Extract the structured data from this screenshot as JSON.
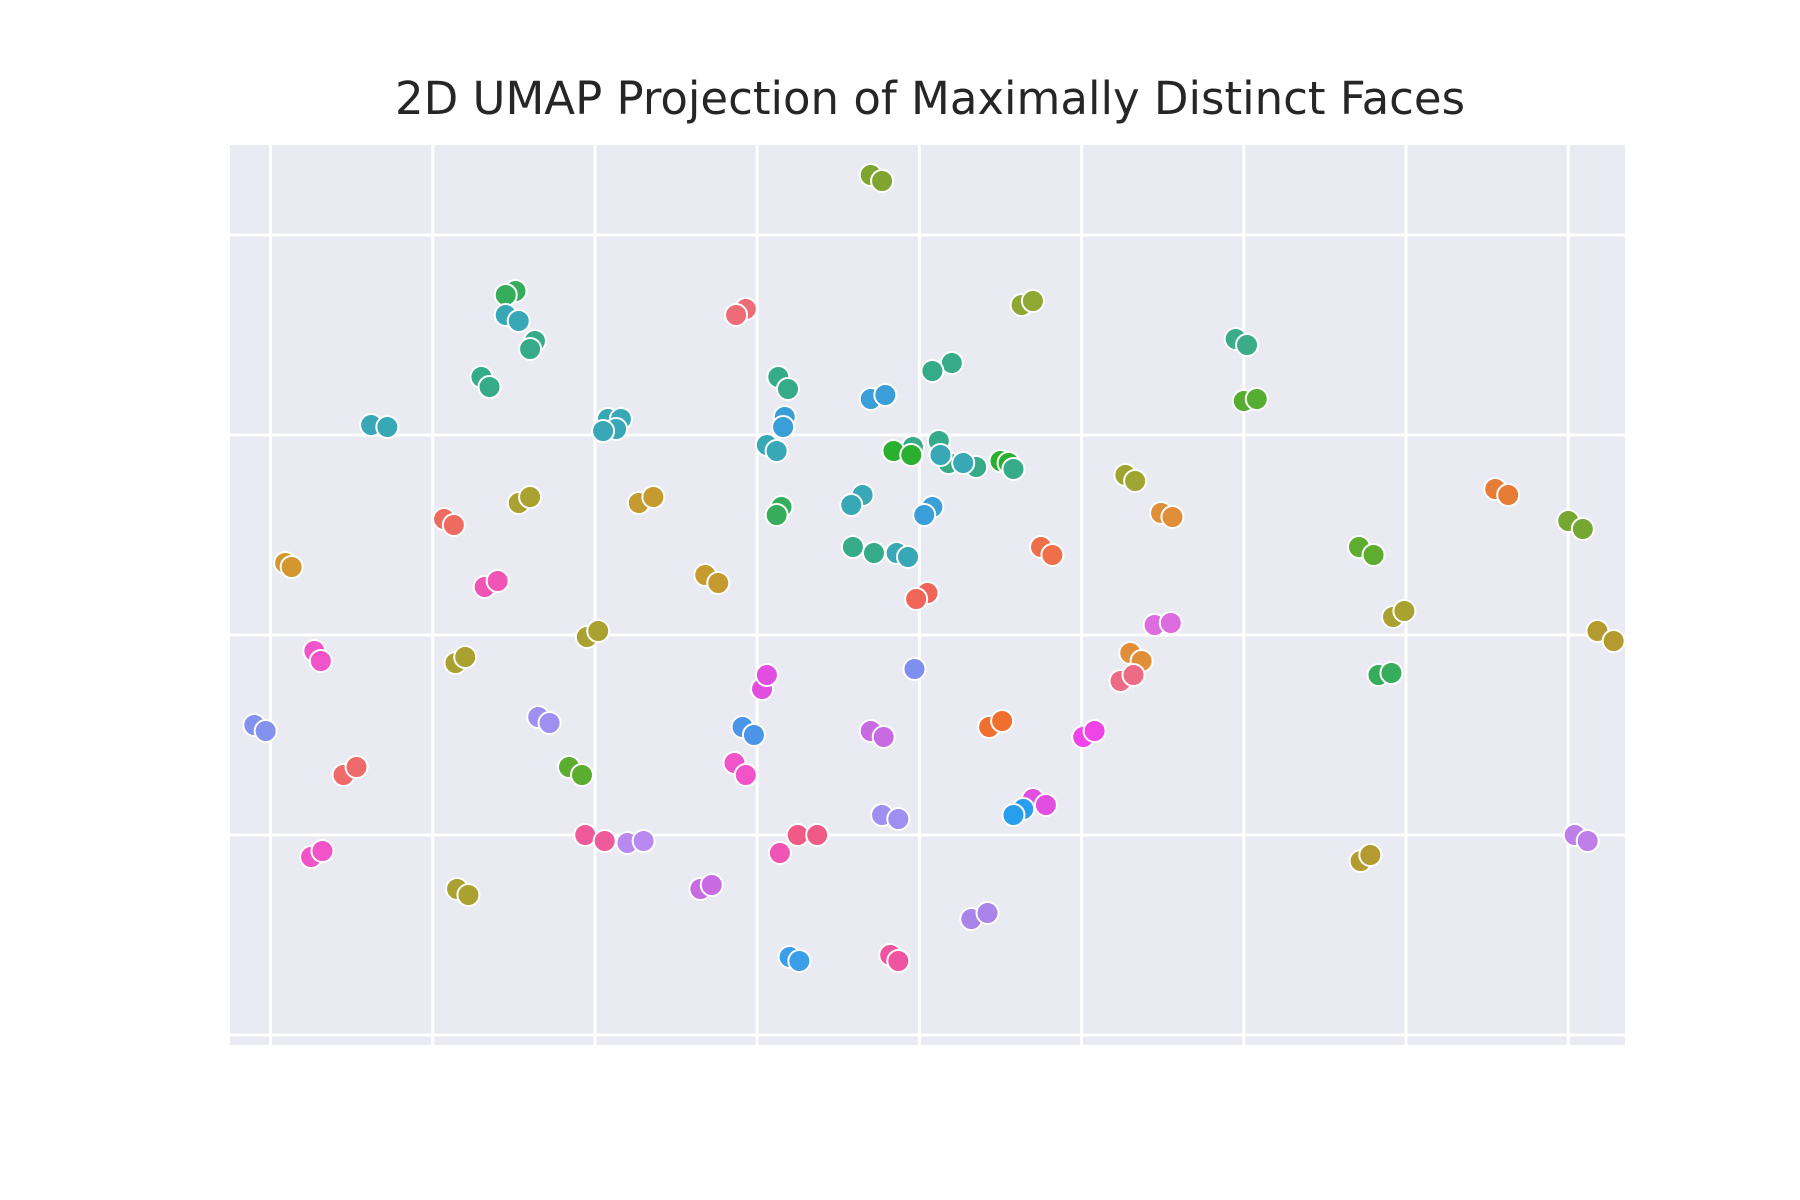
{
  "chart_data": {
    "type": "scatter",
    "title": "2D UMAP Projection of Maximally Distinct Faces",
    "xlabel": "",
    "ylabel": "",
    "xlim": [
      -0.25,
      8.35
    ],
    "ylim": [
      -0.05,
      4.45
    ],
    "grid": true,
    "points": [
      {
        "x": 3.7,
        "y": 4.3,
        "color": "#7fa530"
      },
      {
        "x": 3.77,
        "y": 4.27,
        "color": "#7fa530"
      },
      {
        "x": 1.51,
        "y": 3.72,
        "color": "#36ad5a"
      },
      {
        "x": 1.45,
        "y": 3.7,
        "color": "#36ad5a"
      },
      {
        "x": 1.45,
        "y": 3.6,
        "color": "#38a8b6"
      },
      {
        "x": 1.53,
        "y": 3.57,
        "color": "#38a8b6"
      },
      {
        "x": 1.63,
        "y": 3.47,
        "color": "#36ab8a"
      },
      {
        "x": 1.6,
        "y": 3.43,
        "color": "#36ab8a"
      },
      {
        "x": 1.3,
        "y": 3.29,
        "color": "#36ab8a"
      },
      {
        "x": 1.35,
        "y": 3.24,
        "color": "#36ab8a"
      },
      {
        "x": 0.62,
        "y": 3.05,
        "color": "#38a8b6"
      },
      {
        "x": 0.72,
        "y": 3.04,
        "color": "#38a8b6"
      },
      {
        "x": 2.93,
        "y": 3.63,
        "color": "#ee6b78"
      },
      {
        "x": 2.87,
        "y": 3.6,
        "color": "#ee6b78"
      },
      {
        "x": 4.63,
        "y": 3.65,
        "color": "#8fa834"
      },
      {
        "x": 4.7,
        "y": 3.67,
        "color": "#8fa834"
      },
      {
        "x": 5.95,
        "y": 3.48,
        "color": "#3aac8a"
      },
      {
        "x": 6.02,
        "y": 3.45,
        "color": "#3aac8a"
      },
      {
        "x": 6.0,
        "y": 3.17,
        "color": "#55ae32"
      },
      {
        "x": 6.08,
        "y": 3.18,
        "color": "#55ae32"
      },
      {
        "x": 4.2,
        "y": 3.36,
        "color": "#36ab8a"
      },
      {
        "x": 4.08,
        "y": 3.32,
        "color": "#36ab8a"
      },
      {
        "x": 3.13,
        "y": 3.29,
        "color": "#36ab8a"
      },
      {
        "x": 3.19,
        "y": 3.23,
        "color": "#36ab8a"
      },
      {
        "x": 3.7,
        "y": 3.18,
        "color": "#3a9fd8"
      },
      {
        "x": 3.79,
        "y": 3.2,
        "color": "#3a9fd8"
      },
      {
        "x": 3.17,
        "y": 3.09,
        "color": "#3a9fd8"
      },
      {
        "x": 3.16,
        "y": 3.04,
        "color": "#3a9fd8"
      },
      {
        "x": 2.08,
        "y": 3.08,
        "color": "#38a8b6"
      },
      {
        "x": 2.16,
        "y": 3.08,
        "color": "#38a8b6"
      },
      {
        "x": 2.13,
        "y": 3.03,
        "color": "#38a8b6"
      },
      {
        "x": 2.05,
        "y": 3.02,
        "color": "#38a8b6"
      },
      {
        "x": 3.06,
        "y": 2.95,
        "color": "#38a8b6"
      },
      {
        "x": 3.12,
        "y": 2.92,
        "color": "#38a8b6"
      },
      {
        "x": 3.96,
        "y": 2.94,
        "color": "#36ab8a"
      },
      {
        "x": 4.12,
        "y": 2.97,
        "color": "#36ab8a"
      },
      {
        "x": 4.18,
        "y": 2.86,
        "color": "#36ab8a"
      },
      {
        "x": 4.35,
        "y": 2.84,
        "color": "#36ab8a"
      },
      {
        "x": 4.13,
        "y": 2.9,
        "color": "#38a8b6"
      },
      {
        "x": 4.27,
        "y": 2.86,
        "color": "#38a8b6"
      },
      {
        "x": 3.84,
        "y": 2.92,
        "color": "#2aaf2e"
      },
      {
        "x": 3.95,
        "y": 2.9,
        "color": "#2aaf2e"
      },
      {
        "x": 4.5,
        "y": 2.87,
        "color": "#2aaf2e"
      },
      {
        "x": 4.55,
        "y": 2.86,
        "color": "#2aaf2e"
      },
      {
        "x": 4.58,
        "y": 2.83,
        "color": "#36ab8a"
      },
      {
        "x": 5.27,
        "y": 2.8,
        "color": "#9fa531"
      },
      {
        "x": 5.33,
        "y": 2.77,
        "color": "#9fa531"
      },
      {
        "x": 7.55,
        "y": 2.73,
        "color": "#e77c37"
      },
      {
        "x": 7.63,
        "y": 2.7,
        "color": "#e77c37"
      },
      {
        "x": 1.53,
        "y": 2.66,
        "color": "#a9a230"
      },
      {
        "x": 1.6,
        "y": 2.69,
        "color": "#a9a230"
      },
      {
        "x": 2.27,
        "y": 2.66,
        "color": "#c59a2e"
      },
      {
        "x": 2.36,
        "y": 2.69,
        "color": "#c59a2e"
      },
      {
        "x": 3.15,
        "y": 2.64,
        "color": "#36ad5a"
      },
      {
        "x": 3.12,
        "y": 2.6,
        "color": "#36ad5a"
      },
      {
        "x": 3.65,
        "y": 2.7,
        "color": "#38a8b6"
      },
      {
        "x": 3.58,
        "y": 2.65,
        "color": "#38a8b6"
      },
      {
        "x": 4.08,
        "y": 2.64,
        "color": "#3a9fd8"
      },
      {
        "x": 4.03,
        "y": 2.6,
        "color": "#3a9fd8"
      },
      {
        "x": 5.49,
        "y": 2.61,
        "color": "#e08f38"
      },
      {
        "x": 5.56,
        "y": 2.59,
        "color": "#e08f38"
      },
      {
        "x": 8.0,
        "y": 2.57,
        "color": "#76a731"
      },
      {
        "x": 8.09,
        "y": 2.53,
        "color": "#76a731"
      },
      {
        "x": 1.07,
        "y": 2.58,
        "color": "#ee6b60"
      },
      {
        "x": 1.13,
        "y": 2.55,
        "color": "#ee6b60"
      },
      {
        "x": 3.59,
        "y": 2.44,
        "color": "#36ab8a"
      },
      {
        "x": 3.72,
        "y": 2.41,
        "color": "#36ab8a"
      },
      {
        "x": 3.86,
        "y": 2.41,
        "color": "#38a8b6"
      },
      {
        "x": 3.93,
        "y": 2.39,
        "color": "#38a8b6"
      },
      {
        "x": 4.75,
        "y": 2.44,
        "color": "#ef6f4a"
      },
      {
        "x": 4.82,
        "y": 2.4,
        "color": "#ef6f4a"
      },
      {
        "x": 6.71,
        "y": 2.44,
        "color": "#5fad30"
      },
      {
        "x": 6.8,
        "y": 2.4,
        "color": "#5fad30"
      },
      {
        "x": 0.09,
        "y": 2.36,
        "color": "#d4972f"
      },
      {
        "x": 0.13,
        "y": 2.34,
        "color": "#d4972f"
      },
      {
        "x": 1.32,
        "y": 2.24,
        "color": "#f054b5"
      },
      {
        "x": 1.4,
        "y": 2.27,
        "color": "#f054b5"
      },
      {
        "x": 2.68,
        "y": 2.3,
        "color": "#c59a2e"
      },
      {
        "x": 2.76,
        "y": 2.26,
        "color": "#c59a2e"
      },
      {
        "x": 4.05,
        "y": 2.21,
        "color": "#ef6659"
      },
      {
        "x": 3.98,
        "y": 2.18,
        "color": "#ef6659"
      },
      {
        "x": 5.45,
        "y": 2.05,
        "color": "#dc6ce0"
      },
      {
        "x": 5.55,
        "y": 2.06,
        "color": "#dc6ce0"
      },
      {
        "x": 6.92,
        "y": 2.09,
        "color": "#a9a230"
      },
      {
        "x": 6.99,
        "y": 2.12,
        "color": "#a9a230"
      },
      {
        "x": 8.18,
        "y": 2.02,
        "color": "#b39b2f"
      },
      {
        "x": 8.28,
        "y": 1.97,
        "color": "#b39b2f"
      },
      {
        "x": 0.27,
        "y": 1.92,
        "color": "#f054c8"
      },
      {
        "x": 0.31,
        "y": 1.87,
        "color": "#f054c8"
      },
      {
        "x": 1.14,
        "y": 1.86,
        "color": "#a9a230"
      },
      {
        "x": 1.2,
        "y": 1.89,
        "color": "#a9a230"
      },
      {
        "x": 1.95,
        "y": 1.99,
        "color": "#a9a230"
      },
      {
        "x": 2.02,
        "y": 2.02,
        "color": "#a9a230"
      },
      {
        "x": 3.03,
        "y": 1.73,
        "color": "#e24fe0"
      },
      {
        "x": 3.06,
        "y": 1.8,
        "color": "#e24fe0"
      },
      {
        "x": 3.97,
        "y": 1.83,
        "color": "#7f8ff0"
      },
      {
        "x": 5.3,
        "y": 1.91,
        "color": "#e08f38"
      },
      {
        "x": 5.37,
        "y": 1.87,
        "color": "#e08f38"
      },
      {
        "x": 5.24,
        "y": 1.77,
        "color": "#ee6b86"
      },
      {
        "x": 5.32,
        "y": 1.8,
        "color": "#ee6b86"
      },
      {
        "x": 6.83,
        "y": 1.8,
        "color": "#36ad5a"
      },
      {
        "x": 6.91,
        "y": 1.81,
        "color": "#36ad5a"
      },
      {
        "x": -0.1,
        "y": 1.55,
        "color": "#8392ee"
      },
      {
        "x": -0.03,
        "y": 1.52,
        "color": "#8392ee"
      },
      {
        "x": 1.65,
        "y": 1.59,
        "color": "#9e8ff0"
      },
      {
        "x": 1.72,
        "y": 1.56,
        "color": "#9e8ff0"
      },
      {
        "x": 2.91,
        "y": 1.54,
        "color": "#4b95e8"
      },
      {
        "x": 2.98,
        "y": 1.5,
        "color": "#4b95e8"
      },
      {
        "x": 3.7,
        "y": 1.52,
        "color": "#c86ae2"
      },
      {
        "x": 3.78,
        "y": 1.49,
        "color": "#c86ae2"
      },
      {
        "x": 4.43,
        "y": 1.54,
        "color": "#ef6f2e"
      },
      {
        "x": 4.51,
        "y": 1.57,
        "color": "#ef6f2e"
      },
      {
        "x": 5.01,
        "y": 1.49,
        "color": "#f044e8"
      },
      {
        "x": 5.08,
        "y": 1.52,
        "color": "#f044e8"
      },
      {
        "x": 0.45,
        "y": 1.3,
        "color": "#ef6a6a"
      },
      {
        "x": 0.53,
        "y": 1.34,
        "color": "#ef6a6a"
      },
      {
        "x": 1.84,
        "y": 1.34,
        "color": "#5aad2e"
      },
      {
        "x": 1.92,
        "y": 1.3,
        "color": "#5aad2e"
      },
      {
        "x": 2.86,
        "y": 1.36,
        "color": "#f054c8"
      },
      {
        "x": 2.93,
        "y": 1.3,
        "color": "#f054c8"
      },
      {
        "x": 4.7,
        "y": 1.18,
        "color": "#e24fe0"
      },
      {
        "x": 4.78,
        "y": 1.15,
        "color": "#e24fe0"
      },
      {
        "x": 4.64,
        "y": 1.13,
        "color": "#2a9eee"
      },
      {
        "x": 4.58,
        "y": 1.1,
        "color": "#2a9eee"
      },
      {
        "x": 3.77,
        "y": 1.1,
        "color": "#9e8ff0"
      },
      {
        "x": 3.87,
        "y": 1.08,
        "color": "#9e8ff0"
      },
      {
        "x": 0.25,
        "y": 0.89,
        "color": "#f054c8"
      },
      {
        "x": 0.32,
        "y": 0.92,
        "color": "#f054c8"
      },
      {
        "x": 1.94,
        "y": 1.0,
        "color": "#ef5a9a"
      },
      {
        "x": 2.06,
        "y": 0.97,
        "color": "#ef5a9a"
      },
      {
        "x": 2.2,
        "y": 0.96,
        "color": "#b889f0"
      },
      {
        "x": 2.3,
        "y": 0.97,
        "color": "#b889f0"
      },
      {
        "x": 3.25,
        "y": 1.0,
        "color": "#ef5a86"
      },
      {
        "x": 3.37,
        "y": 1.0,
        "color": "#ef5a86"
      },
      {
        "x": 3.14,
        "y": 0.91,
        "color": "#f054b5"
      },
      {
        "x": 6.72,
        "y": 0.87,
        "color": "#b39b2f"
      },
      {
        "x": 6.78,
        "y": 0.9,
        "color": "#b39b2f"
      },
      {
        "x": 8.04,
        "y": 1.0,
        "color": "#c07ee8"
      },
      {
        "x": 8.12,
        "y": 0.97,
        "color": "#c07ee8"
      },
      {
        "x": 1.15,
        "y": 0.73,
        "color": "#a9a230"
      },
      {
        "x": 1.22,
        "y": 0.7,
        "color": "#a9a230"
      },
      {
        "x": 2.65,
        "y": 0.73,
        "color": "#c86ae2"
      },
      {
        "x": 2.72,
        "y": 0.75,
        "color": "#c86ae2"
      },
      {
        "x": 4.32,
        "y": 0.58,
        "color": "#a984ea"
      },
      {
        "x": 4.42,
        "y": 0.61,
        "color": "#a984ea"
      },
      {
        "x": 3.2,
        "y": 0.39,
        "color": "#3a9fe8"
      },
      {
        "x": 3.26,
        "y": 0.37,
        "color": "#3a9fe8"
      },
      {
        "x": 3.82,
        "y": 0.4,
        "color": "#f054a0"
      },
      {
        "x": 3.87,
        "y": 0.37,
        "color": "#f054a0"
      }
    ]
  }
}
